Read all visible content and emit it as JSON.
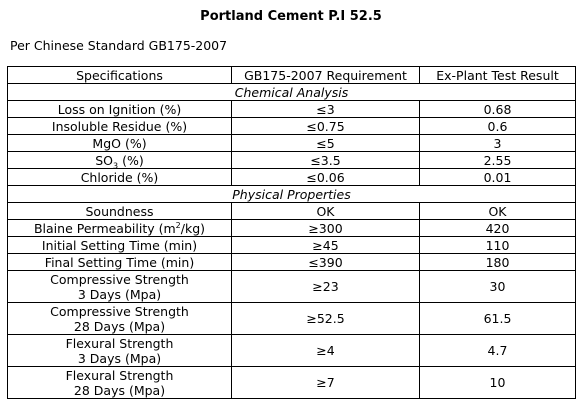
{
  "title": "Portland Cement P.I 52.5",
  "subtitle": "Per Chinese Standard GB175-2007",
  "table": {
    "headers": [
      "Specifications",
      "GB175-2007 Requirement",
      "Ex-Plant Test Result"
    ],
    "chemical_section": "Chemical Analysis",
    "physical_section": "Physical Properties",
    "chemical_rows": [
      {
        "spec": "Loss on Ignition (%)",
        "req": "≤3",
        "result": "0.68"
      },
      {
        "spec": "Insoluble Residue (%)",
        "req": "≤0.75",
        "result": "0.6"
      },
      {
        "spec": "MgO (%)",
        "req": "≤5",
        "result": "3"
      },
      {
        "spec_pre": "SO",
        "spec_sub": "3",
        "spec_post": " (%)",
        "req": "≤3.5",
        "result": "2.55"
      },
      {
        "spec": "Chloride (%)",
        "req": "≤0.06",
        "result": "0.01"
      }
    ],
    "physical_rows": [
      {
        "spec": "Soundness",
        "req": "OK",
        "result": "OK"
      },
      {
        "spec_pre": "Blaine Permeability (m",
        "spec_sup": "2",
        "spec_post": "/kg)",
        "req": "≥300",
        "result": "420"
      },
      {
        "spec": "Initial Setting Time (min)",
        "req": "≥45",
        "result": "110"
      },
      {
        "spec": "Final Setting Time (min)",
        "req": "≤390",
        "result": "180"
      },
      {
        "spec_line1": "Compressive Strength",
        "spec_line2": "3 Days (Mpa)",
        "req": "≥23",
        "result": "30"
      },
      {
        "spec_line1": "Compressive Strength",
        "spec_line2": "28 Days (Mpa)",
        "req": "≥52.5",
        "result": "61.5"
      },
      {
        "spec_line1": "Flexural Strength",
        "spec_line2": "3 Days (Mpa)",
        "req": "≥4",
        "result": "4.7"
      },
      {
        "spec_line1": "Flexural Strength",
        "spec_line2": "28 Days (Mpa)",
        "req": "≥7",
        "result": "10"
      }
    ]
  }
}
